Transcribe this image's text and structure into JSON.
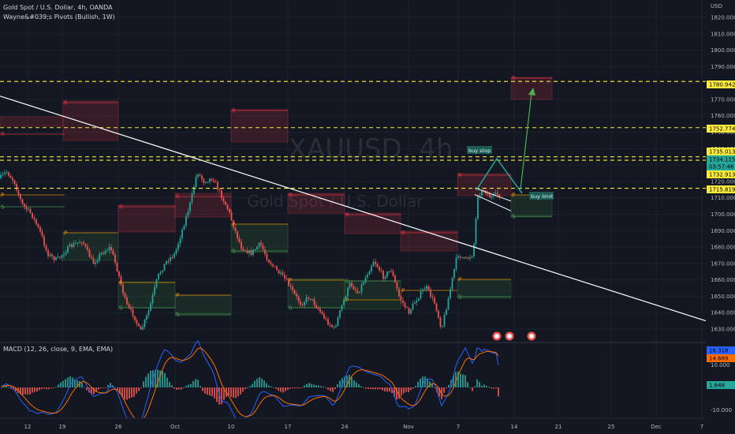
{
  "header": {
    "symbol_line": "Gold Spot / U.S. Dollar, 4h, OANDA",
    "indicator_line": "Wayne&#039;s Pivots (Bullish, 1W)",
    "macd_label": "MACD (12, 26, close, 9, EMA, EMA)"
  },
  "watermark": {
    "symbol": "XAUUSD, 4h",
    "name": "Gold Spot / U.S. Dollar"
  },
  "colors": {
    "background": "#131722",
    "up": "#26a69a",
    "down": "#ef5350",
    "trendline": "#ffffff",
    "dashed_level": "#ffeb3b",
    "macd_line": "#2962ff",
    "signal_line": "#ff6d00",
    "pivot_p": "#ff9800",
    "pivot_r": "#f23645",
    "pivot_s": "#4caf50",
    "arrow": "#4caf50"
  },
  "price_axis": {
    "currency": "USD",
    "ticks": [
      "1820.000",
      "1810.000",
      "1800.000",
      "1790.000",
      "1780.000",
      "1770.000",
      "1760.000",
      "1750.000",
      "1740.000",
      "1730.000",
      "1720.000",
      "1710.000",
      "1700.000",
      "1690.000",
      "1680.000",
      "1670.000",
      "1660.000",
      "1650.000",
      "1640.000",
      "1630.000"
    ]
  },
  "macd_axis": {
    "ticks": [
      "10.000",
      "-10.000"
    ]
  },
  "time_axis": {
    "ticks": [
      "12",
      "19",
      "26",
      "Oct",
      "10",
      "17",
      "24",
      "Nov",
      "7",
      "14",
      "21",
      "25",
      "Dec",
      "7"
    ]
  },
  "level_tags": [
    {
      "value": "1780.942",
      "style": "yellow"
    },
    {
      "value": "1752.774",
      "style": "yellow"
    },
    {
      "value": "1735.013",
      "style": "yellow"
    },
    {
      "value": "1734.115",
      "style": "green"
    },
    {
      "value": "03:57:46",
      "style": "green"
    },
    {
      "value": "1732.913",
      "style": "yellow"
    },
    {
      "value": "1715.819",
      "style": "yellow"
    }
  ],
  "macd_tags": [
    {
      "value": "16.318",
      "style": "blue"
    },
    {
      "value": "14.669",
      "style": "orange"
    },
    {
      "value": "1.648",
      "style": "teal"
    }
  ],
  "annotations": {
    "buy_stop": "buy stop",
    "buy_limit": "buy limit"
  },
  "pivot_letters": {
    "r": "R",
    "p": "P",
    "s": "S"
  },
  "chart_data": {
    "type": "candlestick",
    "timeframe": "4h",
    "period": "approx. Sep 12 – Nov 11, 2022",
    "ohlc_approx": {
      "mid_path": [
        [
          0,
          1722
        ],
        [
          8,
          1726
        ],
        [
          18,
          1720
        ],
        [
          28,
          1706
        ],
        [
          40,
          1700
        ],
        [
          52,
          1688
        ],
        [
          60,
          1676
        ],
        [
          72,
          1672
        ],
        [
          88,
          1680
        ],
        [
          104,
          1684
        ],
        [
          118,
          1670
        ],
        [
          128,
          1676
        ],
        [
          140,
          1680
        ],
        [
          150,
          1664
        ],
        [
          160,
          1645
        ],
        [
          170,
          1638
        ],
        [
          178,
          1628
        ],
        [
          188,
          1640
        ],
        [
          200,
          1662
        ],
        [
          212,
          1672
        ],
        [
          222,
          1676
        ],
        [
          232,
          1692
        ],
        [
          242,
          1708
        ],
        [
          250,
          1726
        ],
        [
          258,
          1720
        ],
        [
          270,
          1722
        ],
        [
          280,
          1712
        ],
        [
          290,
          1702
        ],
        [
          298,
          1690
        ],
        [
          306,
          1680
        ],
        [
          318,
          1676
        ],
        [
          330,
          1682
        ],
        [
          340,
          1672
        ],
        [
          352,
          1665
        ],
        [
          362,
          1660
        ],
        [
          372,
          1652
        ],
        [
          382,
          1645
        ],
        [
          392,
          1650
        ],
        [
          404,
          1642
        ],
        [
          414,
          1635
        ],
        [
          424,
          1630
        ],
        [
          434,
          1645
        ],
        [
          444,
          1658
        ],
        [
          454,
          1652
        ],
        [
          464,
          1662
        ],
        [
          474,
          1672
        ],
        [
          486,
          1662
        ],
        [
          496,
          1666
        ],
        [
          506,
          1650
        ],
        [
          518,
          1640
        ],
        [
          528,
          1648
        ],
        [
          540,
          1656
        ],
        [
          552,
          1645
        ],
        [
          560,
          1630
        ],
        [
          570,
          1652
        ],
        [
          580,
          1676
        ],
        [
          590,
          1672
        ],
        [
          600,
          1676
        ],
        [
          606,
          1712
        ],
        [
          614,
          1715
        ],
        [
          622,
          1710
        ],
        [
          630,
          1712
        ],
        [
          634,
          1712
        ]
      ]
    },
    "levels": [
      1780.942,
      1752.774,
      1735.013,
      1732.913,
      1715.819
    ],
    "last_price": 1734.115,
    "countdown": "03:57:46",
    "trendline": {
      "from": [
        "2022-09-05",
        1770
      ],
      "to": [
        "2022-11-25",
        1635
      ]
    },
    "macd": {
      "fast": 12,
      "slow": 26,
      "signal": 9,
      "macd": 16.318,
      "signal_value": 14.669,
      "histogram": 1.648
    },
    "price_range": [
      1625,
      1828
    ],
    "macd_range": [
      -12,
      18
    ]
  }
}
